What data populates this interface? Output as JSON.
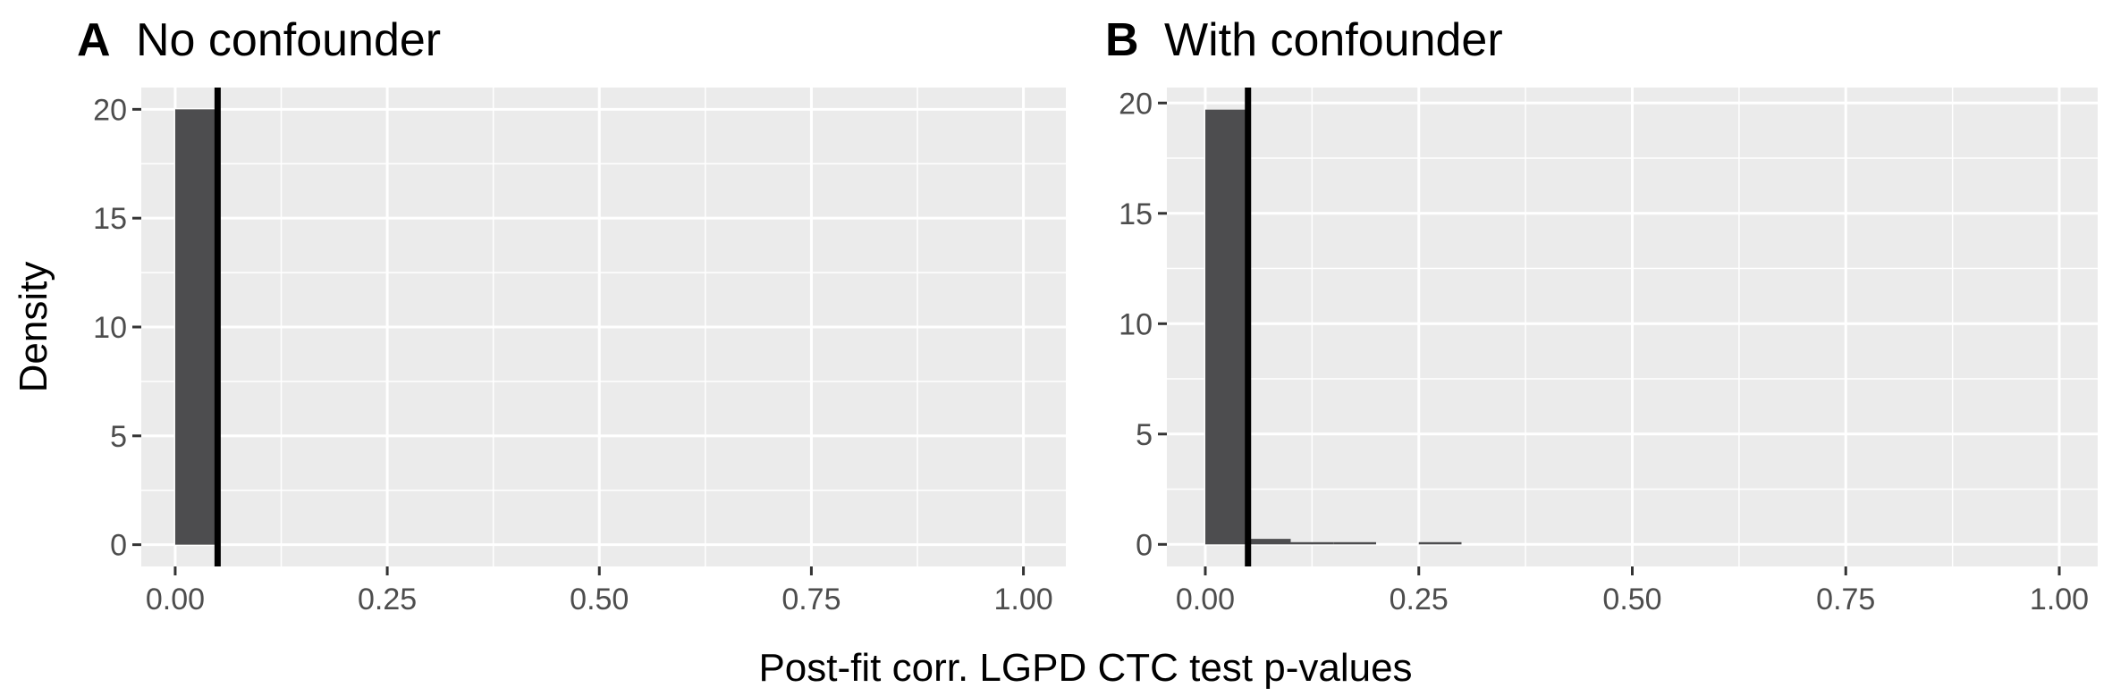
{
  "figure": {
    "xlabel": "Post-fit corr. LGPD CTC test p-values",
    "ylabel": "Density"
  },
  "chart_data": [
    {
      "type": "bar",
      "panel_letter": "A",
      "title": "No confounder",
      "xlim": [
        -0.04,
        1.05
      ],
      "ylim": [
        -1.0,
        21.0
      ],
      "x_ticks": [
        0.0,
        0.25,
        0.5,
        0.75,
        1.0
      ],
      "x_tick_labels": [
        "0.00",
        "0.25",
        "0.50",
        "0.75",
        "1.00"
      ],
      "y_ticks": [
        0,
        5,
        10,
        15,
        20
      ],
      "y_tick_labels": [
        "0",
        "5",
        "10",
        "15",
        "20"
      ],
      "bin_width": 0.05,
      "bins": [
        {
          "x0": 0.0,
          "x1": 0.05,
          "density": 20.0
        }
      ],
      "reference_line_x": 0.05,
      "grid": true
    },
    {
      "type": "bar",
      "panel_letter": "B",
      "title": "With confounder",
      "xlim": [
        -0.045,
        1.045
      ],
      "ylim": [
        -1.0,
        20.7
      ],
      "x_ticks": [
        0.0,
        0.25,
        0.5,
        0.75,
        1.0
      ],
      "x_tick_labels": [
        "0.00",
        "0.25",
        "0.50",
        "0.75",
        "1.00"
      ],
      "y_ticks": [
        0,
        5,
        10,
        15,
        20
      ],
      "y_tick_labels": [
        "0",
        "5",
        "10",
        "15",
        "20"
      ],
      "bin_width": 0.05,
      "bins": [
        {
          "x0": 0.0,
          "x1": 0.05,
          "density": 19.7
        },
        {
          "x0": 0.05,
          "x1": 0.1,
          "density": 0.25
        },
        {
          "x0": 0.1,
          "x1": 0.15,
          "density": 0.08
        },
        {
          "x0": 0.15,
          "x1": 0.2,
          "density": 0.06
        },
        {
          "x0": 0.25,
          "x1": 0.3,
          "density": 0.03
        }
      ],
      "reference_line_x": 0.05,
      "grid": true
    }
  ]
}
